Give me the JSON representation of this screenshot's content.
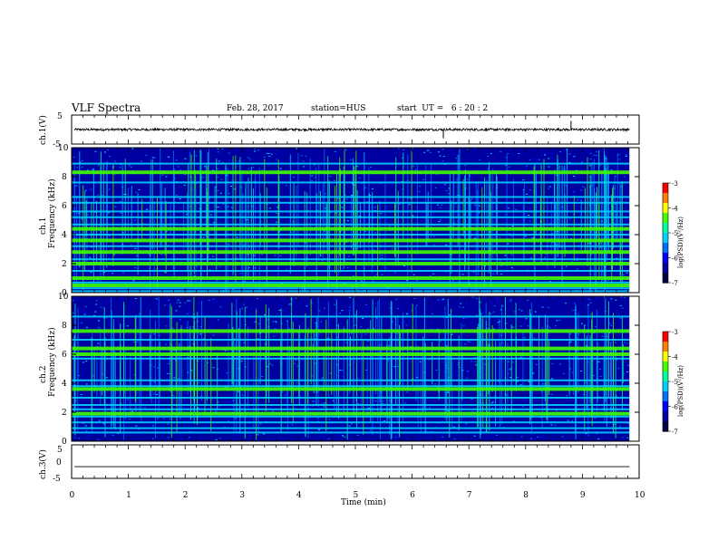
{
  "header": {
    "title": "VLF Spectra",
    "date": "Feb. 28, 2017",
    "station": "station=HUS",
    "start": "start  UT =   6 : 20 : 2"
  },
  "colors": {
    "spectrogram_background": "#0000a0",
    "colormap": [
      "#000000",
      "#00006e",
      "#0000ff",
      "#00a0ff",
      "#00ffff",
      "#00ff80",
      "#ffff00",
      "#ff8000",
      "#ff0000",
      "#ffffff"
    ]
  },
  "chart_data": [
    {
      "type": "line",
      "panel": "ch.1 waveform",
      "ylabel": "ch.1(V)",
      "ylim": [
        -5,
        5
      ],
      "yticks": [
        "5",
        "-5"
      ],
      "xlim": [
        0,
        10
      ],
      "description_values": {
        "baseline_v": 0,
        "noise_amplitude_v": 0.4,
        "spikes_min": [
          6.55,
          8.8
        ]
      }
    },
    {
      "type": "heatmap",
      "panel": "ch.1 spectrogram",
      "ylabel": "ch.1",
      "ylabel2": "Frequency (kHz)",
      "ylim": [
        0,
        10
      ],
      "yticks": [
        "0",
        "2",
        "4",
        "6",
        "8",
        "10"
      ],
      "xlim": [
        0,
        9.83
      ],
      "horizontal_bands_khz": [
        0.1,
        0.3,
        0.5,
        0.7,
        1.0,
        1.5,
        2.0,
        2.3,
        2.8,
        3.2,
        3.6,
        4.0,
        4.4,
        4.7,
        5.2,
        5.6,
        6.2,
        6.6,
        7.6,
        8.3,
        8.9
      ],
      "strong_bands_khz": [
        0.5,
        1.0,
        2.0,
        2.8,
        3.6,
        4.4,
        8.3
      ],
      "colorbar": {
        "label": "log(PSD)(V²/Hz)",
        "ticks": [
          "-3",
          "-4",
          "-5",
          "-6",
          "-7"
        ],
        "range": [
          -7,
          -3
        ]
      }
    },
    {
      "type": "heatmap",
      "panel": "ch.2 spectrogram",
      "ylabel": "ch.2",
      "ylabel2": "Frequency (kHz)",
      "ylim": [
        0,
        10
      ],
      "yticks": [
        "0",
        "2",
        "4",
        "6",
        "8",
        "10"
      ],
      "xlim": [
        0,
        9.83
      ],
      "horizontal_bands_khz": [
        0.6,
        0.9,
        1.3,
        1.7,
        1.9,
        2.2,
        2.5,
        3.0,
        3.6,
        3.8,
        4.2,
        5.7,
        6.0,
        6.4,
        7.0,
        7.6,
        8.6
      ],
      "strong_bands_khz": [
        1.9,
        3.6,
        6.0,
        6.4,
        7.6
      ],
      "colorbar": {
        "label": "log(PSD)(V²/Hz)",
        "ticks": [
          "-3",
          "-4",
          "-5",
          "-6",
          "-7"
        ],
        "range": [
          -7,
          -3
        ]
      }
    },
    {
      "type": "line",
      "panel": "ch.3 waveform",
      "ylabel": "ch.3(V)",
      "ylim": [
        -5,
        5
      ],
      "yticks": [
        "5",
        "0",
        "-5"
      ],
      "xlim": [
        0,
        10
      ],
      "description_values": {
        "level_v": -1.5
      },
      "xlabel": "Time (min)",
      "xticks": [
        "0",
        "1",
        "2",
        "3",
        "4",
        "5",
        "6",
        "7",
        "8",
        "9",
        "10"
      ]
    }
  ]
}
